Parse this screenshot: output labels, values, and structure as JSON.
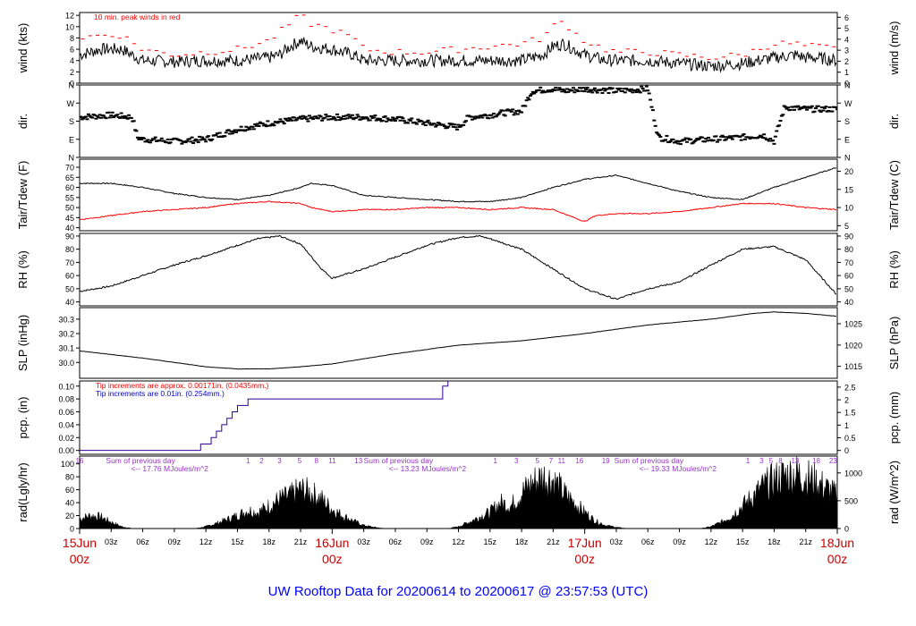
{
  "title": "UW Rooftop Data for 20200614  to  20200617 @ 23:57:53  (UTC)",
  "colors": {
    "primary": "#000000",
    "accent_red": "#ff0000",
    "accent_blue": "#0000cc",
    "accent_purple": "#9933cc",
    "title_blue": "#0000ff"
  },
  "x_axis": {
    "hour_ticks": [
      "03z",
      "06z",
      "09z",
      "12z",
      "15z",
      "18z",
      "21z",
      "03z",
      "06z",
      "09z",
      "12z",
      "15z",
      "18z",
      "21z",
      "03z",
      "06z",
      "09z",
      "12z",
      "15z",
      "18z",
      "21z"
    ],
    "hour_positions": [
      3,
      6,
      9,
      12,
      15,
      18,
      21,
      27,
      30,
      33,
      36,
      39,
      42,
      45,
      51,
      54,
      57,
      60,
      63,
      66,
      69
    ],
    "day_labels": [
      {
        "date": "15Jun",
        "time": "00z",
        "hour": 0
      },
      {
        "date": "16Jun",
        "time": "00z",
        "hour": 24
      },
      {
        "date": "17Jun",
        "time": "00z",
        "hour": 48
      },
      {
        "date": "18Jun",
        "time": "00z",
        "hour": 72
      }
    ],
    "xlim": [
      0,
      72
    ]
  },
  "chart_data": [
    {
      "type": "line",
      "panel": "wind",
      "ylabel": "wind (kts)",
      "ylabel_right": "wind (m/s)",
      "ylim": [
        0,
        12.5
      ],
      "yticks": [
        0,
        2,
        4,
        6,
        8,
        10,
        12
      ],
      "yticks_right": [
        0,
        1,
        2,
        3,
        4,
        5,
        6
      ],
      "annotation": "10 min. peak winds in red",
      "series": [
        {
          "name": "wind",
          "x": [
            0,
            2,
            4,
            6,
            9,
            12,
            15,
            18,
            19,
            20,
            21,
            22,
            24,
            26,
            27,
            30,
            33,
            36,
            39,
            42,
            44,
            45,
            46,
            47,
            48,
            50,
            51,
            54,
            57,
            60,
            63,
            66,
            68,
            69,
            70,
            72
          ],
          "y": [
            5,
            6,
            6,
            4,
            3.8,
            4,
            4,
            4.5,
            5,
            6.5,
            7.5,
            6.5,
            6,
            5,
            4,
            4,
            4,
            4,
            4,
            4,
            5,
            6.5,
            7,
            6,
            5,
            4,
            4,
            4,
            3.5,
            3,
            3.5,
            4.5,
            5,
            4.5,
            4.5,
            4
          ]
        },
        {
          "name": "peak",
          "x": [
            0,
            2,
            4,
            6,
            9,
            12,
            15,
            18,
            19,
            20,
            21,
            22,
            24,
            26,
            27,
            30,
            33,
            36,
            39,
            42,
            44,
            45,
            46,
            47,
            48,
            50,
            51,
            54,
            57,
            60,
            63,
            66,
            68,
            69,
            70,
            72
          ],
          "y": [
            8,
            8.5,
            8.5,
            6,
            5,
            5.5,
            6,
            7.5,
            9,
            10.5,
            12,
            10.5,
            9.5,
            8,
            6,
            5.5,
            5.5,
            6,
            6.5,
            7,
            8,
            10,
            11,
            9,
            7.5,
            6,
            5.5,
            5.5,
            5,
            4.5,
            5,
            7,
            7,
            6.5,
            6.5,
            6
          ]
        }
      ]
    },
    {
      "type": "scatter",
      "panel": "dir",
      "ylabel": "dir.",
      "ylabel_right": "dir.",
      "ylim": [
        0,
        360
      ],
      "ytick_labels": [
        "N",
        "E",
        "S",
        "W",
        "N"
      ],
      "ytick_values": [
        0,
        90,
        180,
        270,
        360
      ],
      "x": [
        0,
        3,
        5,
        5.5,
        6,
        9,
        12,
        15,
        18,
        21,
        24,
        27,
        30,
        33,
        36,
        37,
        39,
        40,
        42,
        43,
        45,
        46,
        48,
        51,
        54,
        55,
        57,
        60,
        63,
        65,
        66,
        67,
        69,
        72
      ],
      "y": [
        200,
        210,
        200,
        100,
        90,
        80,
        90,
        140,
        170,
        190,
        200,
        200,
        190,
        170,
        150,
        200,
        210,
        220,
        230,
        330,
        340,
        330,
        340,
        330,
        340,
        100,
        80,
        90,
        100,
        110,
        80,
        250,
        240,
        240
      ]
    },
    {
      "type": "line",
      "panel": "temp",
      "ylabel": "Tair/Tdew (F)",
      "ylabel_right": "Tair/Tdew (C)",
      "ylim": [
        38.5,
        74
      ],
      "yticks": [
        40,
        45,
        50,
        55,
        60,
        65,
        70
      ],
      "yticks_right": [
        5,
        10,
        15,
        20
      ],
      "series": [
        {
          "name": "Tair",
          "x": [
            0,
            3,
            6,
            9,
            12,
            15,
            18,
            21,
            22,
            24,
            27,
            30,
            33,
            36,
            39,
            42,
            45,
            48,
            51,
            54,
            57,
            60,
            63,
            66,
            69,
            72
          ],
          "y": [
            62,
            62,
            60,
            57,
            55,
            54,
            56,
            60,
            62,
            61,
            56,
            55,
            54,
            53,
            53,
            55,
            60,
            64,
            66,
            62,
            58,
            55,
            54,
            60,
            65,
            70
          ]
        },
        {
          "name": "Tdew",
          "x": [
            0,
            3,
            6,
            9,
            12,
            15,
            18,
            21,
            22,
            24,
            27,
            30,
            33,
            36,
            39,
            42,
            45,
            46,
            47,
            48,
            49,
            51,
            54,
            57,
            60,
            63,
            66,
            69,
            72
          ],
          "y": [
            44,
            46,
            48,
            49,
            50,
            52,
            53,
            52,
            50,
            48,
            49,
            49,
            50,
            50,
            49,
            50,
            49,
            47,
            45,
            43,
            46,
            47,
            47,
            48,
            50,
            52,
            52,
            50,
            49
          ]
        }
      ]
    },
    {
      "type": "line",
      "panel": "rh",
      "ylabel": "RH (%)",
      "ylabel_right": "RH (%)",
      "ylim": [
        37,
        92
      ],
      "yticks": [
        40,
        50,
        60,
        70,
        80,
        90
      ],
      "yticks_right": [
        40,
        50,
        60,
        70,
        80,
        90
      ],
      "series": [
        {
          "name": "RH",
          "x": [
            0,
            3,
            6,
            9,
            12,
            15,
            17,
            19,
            21,
            23,
            24,
            27,
            30,
            33,
            36,
            38,
            39,
            42,
            45,
            48,
            51,
            54,
            57,
            60,
            63,
            66,
            69,
            72
          ],
          "y": [
            48,
            52,
            60,
            68,
            75,
            83,
            88,
            90,
            84,
            65,
            58,
            65,
            74,
            83,
            89,
            90,
            88,
            80,
            65,
            50,
            42,
            50,
            55,
            68,
            80,
            82,
            72,
            45
          ]
        }
      ]
    },
    {
      "type": "line",
      "panel": "slp",
      "ylabel": "SLP (inHg)",
      "ylabel_right": "SLP (hPa)",
      "ylim": [
        29.89,
        30.38
      ],
      "yticks": [
        30.0,
        30.1,
        30.2,
        30.3
      ],
      "yticks_right": [
        1015,
        1020,
        1025
      ],
      "series": [
        {
          "name": "SLP",
          "x": [
            0,
            6,
            12,
            15,
            18,
            21,
            24,
            30,
            36,
            42,
            48,
            54,
            60,
            64,
            66,
            69,
            72
          ],
          "y": [
            30.08,
            30.03,
            29.97,
            29.955,
            29.955,
            29.97,
            29.99,
            30.06,
            30.12,
            30.15,
            30.2,
            30.26,
            30.3,
            30.34,
            30.35,
            30.34,
            30.32
          ]
        }
      ]
    },
    {
      "type": "line",
      "panel": "pcp",
      "ylabel": "pcp. (in)",
      "ylabel_right": "pcp. (mm)",
      "ylim": [
        -0.006,
        0.108
      ],
      "yticks": [
        0,
        0.02,
        0.04,
        0.06,
        0.08,
        0.1
      ],
      "yticks_right": [
        0,
        0.5,
        1,
        1.5,
        2,
        2.5
      ],
      "notes": [
        "Tip increments are approx. 0.00171in. (0.0435mm.)",
        "Tip increments are 0.01in. (0.254mm.)"
      ],
      "series": [
        {
          "name": "pcp",
          "x": [
            0,
            11.5,
            11.5,
            12.5,
            12.5,
            13,
            13,
            13.5,
            13.5,
            14,
            14,
            14.5,
            14.5,
            15,
            15,
            16,
            16,
            18,
            18,
            34.5,
            34.5,
            35,
            35,
            72
          ],
          "y": [
            0,
            0,
            0.01,
            0.01,
            0.02,
            0.02,
            0.03,
            0.03,
            0.04,
            0.04,
            0.05,
            0.05,
            0.06,
            0.06,
            0.07,
            0.07,
            0.08,
            0.08,
            0.08,
            0.08,
            0.1,
            0.1,
            0.11,
            0.11
          ]
        }
      ]
    },
    {
      "type": "area",
      "panel": "rad",
      "ylabel": "rad(Lgly/hr)",
      "ylabel_right": "rad (W/m^2)",
      "ylim": [
        0,
        112
      ],
      "yticks": [
        0,
        20,
        40,
        60,
        80,
        100
      ],
      "yticks_right": [
        0,
        500,
        1000
      ],
      "hour_marks": [
        {
          "label": "16",
          "hour": 0
        },
        {
          "label": "1",
          "hour": 16
        },
        {
          "label": "2",
          "hour": 17.3
        },
        {
          "label": "3",
          "hour": 19
        },
        {
          "label": "5",
          "hour": 20.9
        },
        {
          "label": "8",
          "hour": 22.5
        },
        {
          "label": "11",
          "hour": 24
        },
        {
          "label": "13",
          "hour": 26.5
        },
        {
          "label": "1",
          "hour": 39.5
        },
        {
          "label": "3",
          "hour": 41.5
        },
        {
          "label": "5",
          "hour": 43.5
        },
        {
          "label": "7",
          "hour": 44.8
        },
        {
          "label": "11",
          "hour": 45.8
        },
        {
          "label": "16",
          "hour": 47.5
        },
        {
          "label": "19",
          "hour": 50
        },
        {
          "label": "1",
          "hour": 63.5
        },
        {
          "label": "3",
          "hour": 64.8
        },
        {
          "label": "5",
          "hour": 65.7
        },
        {
          "label": "8",
          "hour": 66.6
        },
        {
          "label": "13",
          "hour": 68
        },
        {
          "label": "18",
          "hour": 70
        },
        {
          "label": "23",
          "hour": 71.6
        }
      ],
      "day_notes": [
        {
          "line1": "Sum of previous day",
          "line2": "<-- 17.76 MJoules/m^2",
          "hour": 2.5
        },
        {
          "line1": "Sum of previous day",
          "line2": "<-- 13.23 MJoules/m^2",
          "hour": 27
        },
        {
          "line1": "Sum of previous day",
          "line2": "<-- 19.33 MJoules/m^2",
          "hour": 50.8
        }
      ],
      "series": [
        {
          "name": "rad",
          "x": [
            0,
            1,
            2,
            3,
            4,
            5,
            11,
            12,
            13,
            14,
            15,
            16,
            17,
            18,
            19,
            20,
            21,
            22,
            23,
            24,
            25,
            26,
            27,
            28,
            29,
            35,
            36,
            37,
            38,
            39,
            40,
            41,
            42,
            43,
            44,
            45,
            46,
            47,
            48,
            49,
            50,
            51,
            52,
            53,
            59,
            60,
            61,
            62,
            63,
            64,
            65,
            66,
            67,
            68,
            69,
            70,
            71,
            72
          ],
          "y": [
            15,
            20,
            18,
            10,
            3,
            0,
            0,
            3,
            8,
            14,
            20,
            28,
            25,
            35,
            45,
            50,
            60,
            55,
            45,
            30,
            20,
            12,
            5,
            2,
            0,
            0,
            3,
            10,
            18,
            25,
            40,
            35,
            55,
            70,
            80,
            75,
            55,
            40,
            25,
            12,
            5,
            2,
            0,
            0,
            0,
            3,
            10,
            20,
            35,
            50,
            65,
            75,
            82,
            85,
            80,
            72,
            62,
            50
          ]
        }
      ]
    }
  ]
}
